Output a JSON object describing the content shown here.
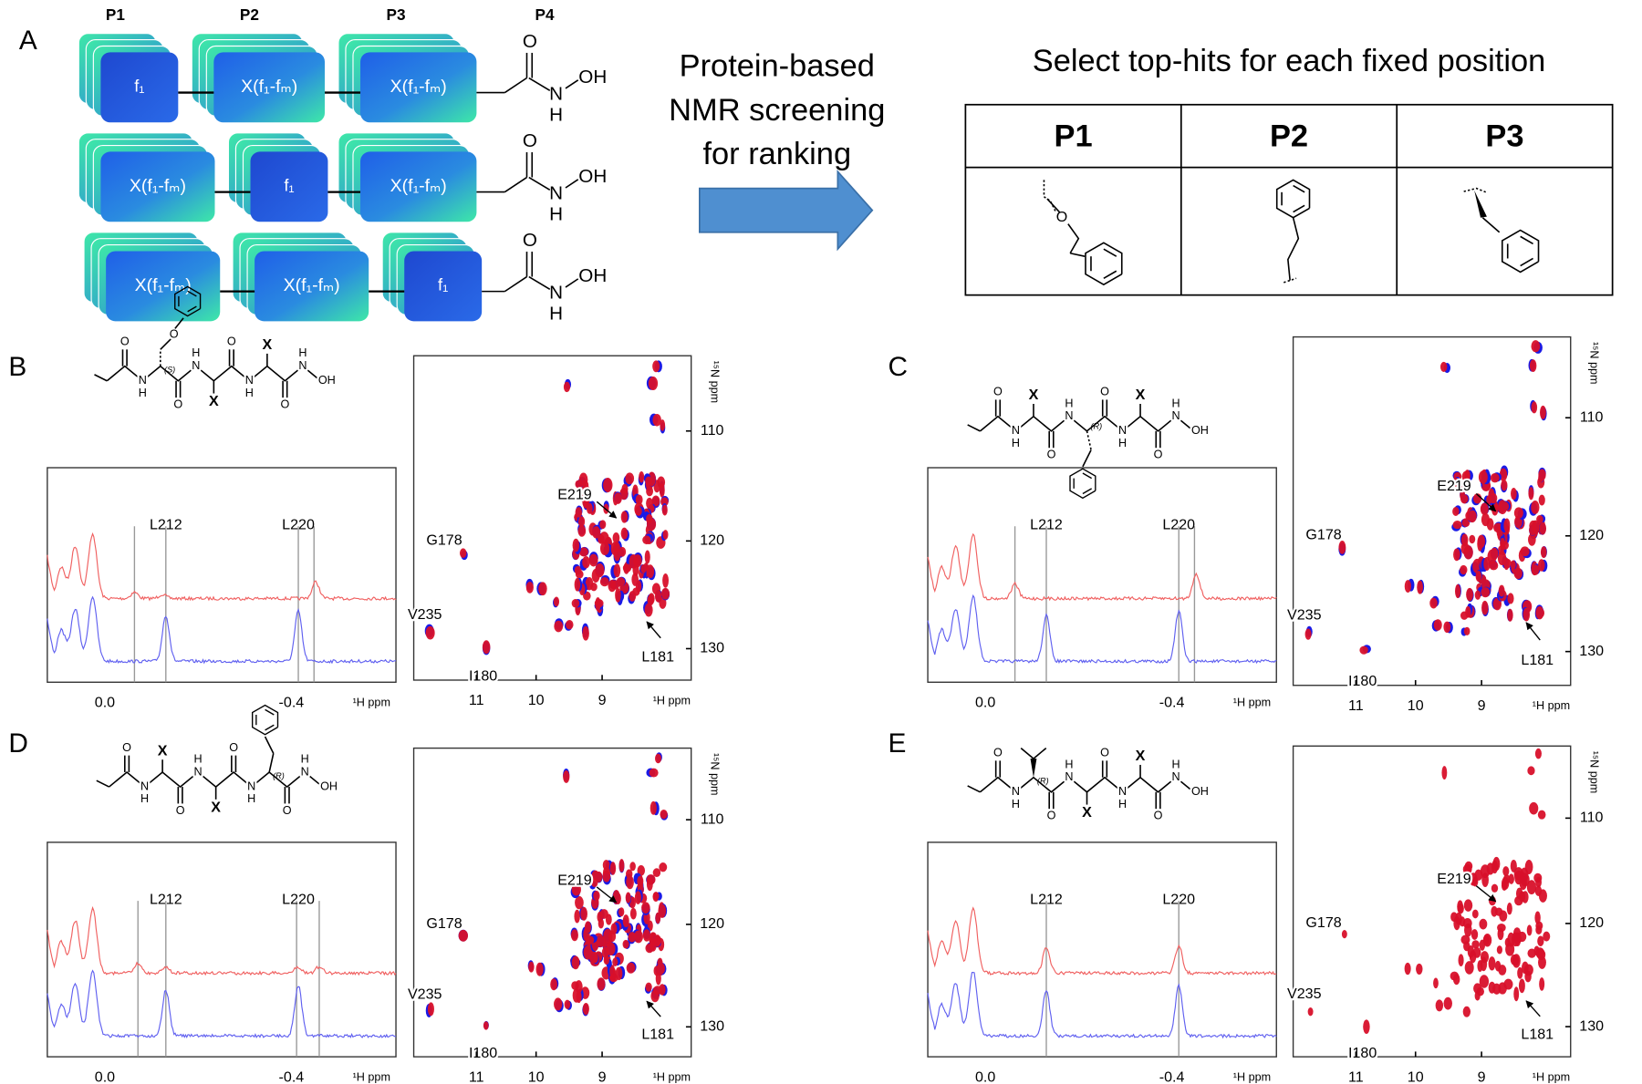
{
  "panel_a": {
    "label": "A",
    "positions": [
      "P1",
      "P2",
      "P3",
      "P4"
    ],
    "fragment_fixed": "f₁",
    "fragment_mix": "X(f₁-fₘ)",
    "arrow_text": [
      "Protein-based",
      "NMR screening",
      "for ranking"
    ],
    "table_title": "Select top-hits for each fixed position",
    "table_headers": [
      "P1",
      "P2",
      "P3"
    ]
  },
  "atoms": {
    "o": "O",
    "n": "N",
    "h": "H",
    "oh": "OH",
    "x": "X"
  },
  "panels": [
    {
      "label": "B",
      "stereo": "(S)",
      "spectrum_1d": {
        "peaks": [
          "L212",
          "L220"
        ],
        "xticks": [
          "0.0",
          "-0.4"
        ],
        "xlabel": "¹H ppm"
      },
      "spectrum_2d": {
        "xticks": [
          "11",
          "10",
          "9"
        ],
        "yticks": [
          "110",
          "120",
          "130"
        ],
        "xlabel": "¹H ppm",
        "ylabel": "¹⁵N ppm",
        "peaks": [
          "E219",
          "G178",
          "V235",
          "I180",
          "L181"
        ]
      }
    },
    {
      "label": "C",
      "stereo": "(R)",
      "spectrum_1d": {
        "peaks": [
          "L212",
          "L220"
        ],
        "xticks": [
          "0.0",
          "-0.4"
        ],
        "xlabel": "¹H ppm"
      },
      "spectrum_2d": {
        "xticks": [
          "11",
          "10",
          "9"
        ],
        "yticks": [
          "110",
          "120",
          "130"
        ],
        "xlabel": "¹H ppm",
        "ylabel": "¹⁵N ppm",
        "peaks": [
          "E219",
          "G178",
          "V235",
          "I180",
          "L181"
        ]
      }
    },
    {
      "label": "D",
      "stereo": "(R)",
      "spectrum_1d": {
        "peaks": [
          "L212",
          "L220"
        ],
        "xticks": [
          "0.0",
          "-0.4"
        ],
        "xlabel": "¹H ppm"
      },
      "spectrum_2d": {
        "xticks": [
          "11",
          "10",
          "9"
        ],
        "yticks": [
          "110",
          "120",
          "130"
        ],
        "xlabel": "¹H ppm",
        "ylabel": "¹⁵N ppm",
        "peaks": [
          "E219",
          "G178",
          "V235",
          "I180",
          "L181"
        ]
      }
    },
    {
      "label": "E",
      "stereo": "(R)",
      "spectrum_1d": {
        "peaks": [
          "L212",
          "L220"
        ],
        "xticks": [
          "0.0",
          "-0.4"
        ],
        "xlabel": "¹H ppm"
      },
      "spectrum_2d": {
        "xticks": [
          "11",
          "10",
          "9"
        ],
        "yticks": [
          "110",
          "120",
          "130"
        ],
        "xlabel": "¹H ppm",
        "ylabel": "¹⁵N ppm",
        "peaks": [
          "E219",
          "G178",
          "V235",
          "I180",
          "L181"
        ]
      }
    }
  ]
}
